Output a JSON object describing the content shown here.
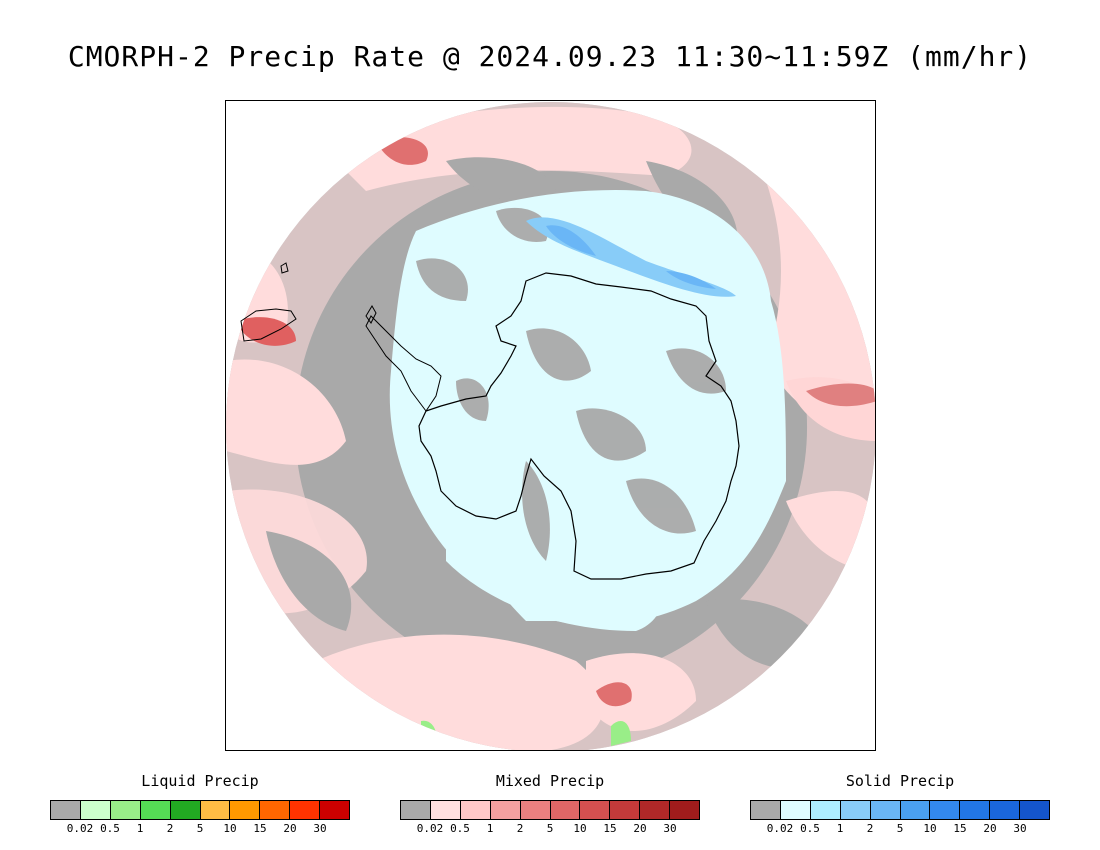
{
  "title": "CMORPH-2 Precip Rate @ 2024.09.23 11:30~11:59Z (mm/hr)",
  "legends": [
    {
      "title": "Liquid Precip",
      "colors": [
        "#a9a9a9",
        "#ccffcc",
        "#99ee88",
        "#55dd55",
        "#22aa22",
        "#ffbb44",
        "#ff9900",
        "#ff6600",
        "#ff3300",
        "#cc0000"
      ],
      "ticks": [
        "0.02",
        "0.5",
        "1",
        "2",
        "5",
        "10",
        "15",
        "20",
        "30"
      ]
    },
    {
      "title": "Mixed Precip",
      "colors": [
        "#a9a9a9",
        "#ffe0e0",
        "#ffc8c8",
        "#f4a0a0",
        "#ea8080",
        "#e06666",
        "#d45050",
        "#c43a3a",
        "#b02828",
        "#a01c1c"
      ],
      "ticks": [
        "0.02",
        "0.5",
        "1",
        "2",
        "5",
        "10",
        "15",
        "20",
        "30"
      ]
    },
    {
      "title": "Solid Precip",
      "colors": [
        "#a9a9a9",
        "#dffcff",
        "#aeeeff",
        "#88ccf8",
        "#6ab6f6",
        "#4aa0f0",
        "#3388ee",
        "#2276e6",
        "#1a66dd",
        "#1455cc"
      ],
      "ticks": [
        "0.02",
        "0.5",
        "1",
        "2",
        "5",
        "10",
        "15",
        "20",
        "30"
      ]
    }
  ]
}
